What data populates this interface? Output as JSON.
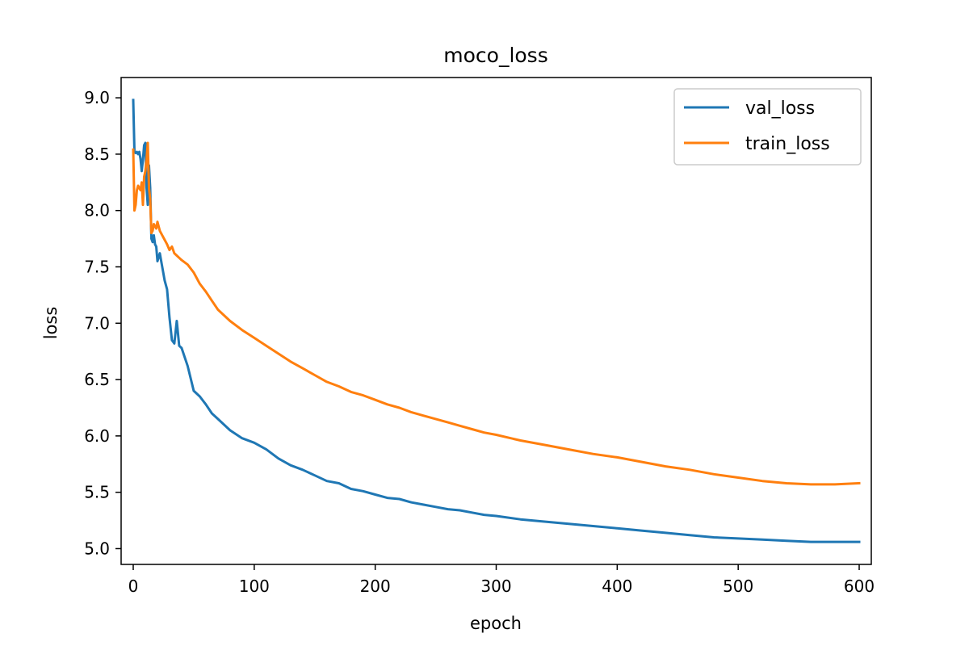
{
  "chart_data": {
    "type": "line",
    "title": "moco_loss",
    "xlabel": "epoch",
    "ylabel": "loss",
    "xlim": [
      -10,
      610
    ],
    "ylim": [
      4.86,
      9.18
    ],
    "xticks": [
      0,
      100,
      200,
      300,
      400,
      500,
      600
    ],
    "xtick_labels": [
      "0",
      "100",
      "200",
      "300",
      "400",
      "500",
      "600"
    ],
    "yticks": [
      5.0,
      5.5,
      6.0,
      6.5,
      7.0,
      7.5,
      8.0,
      8.5,
      9.0
    ],
    "ytick_labels": [
      "5.0",
      "5.5",
      "6.0",
      "6.5",
      "7.0",
      "7.5",
      "8.0",
      "8.5",
      "9.0"
    ],
    "grid": false,
    "legend_position": "top-right",
    "series": [
      {
        "name": "val_loss",
        "color": "#1f77b4",
        "x": [
          0,
          1,
          2,
          3,
          4,
          5,
          6,
          7,
          8,
          9,
          10,
          11,
          12,
          13,
          14,
          15,
          16,
          17,
          18,
          19,
          20,
          22,
          24,
          26,
          28,
          30,
          32,
          34,
          36,
          38,
          40,
          45,
          50,
          55,
          60,
          65,
          70,
          75,
          80,
          90,
          100,
          110,
          120,
          130,
          140,
          150,
          160,
          170,
          180,
          190,
          200,
          210,
          220,
          230,
          240,
          250,
          260,
          270,
          280,
          290,
          300,
          320,
          340,
          360,
          380,
          400,
          420,
          440,
          460,
          480,
          500,
          520,
          540,
          560,
          580,
          600
        ],
        "y": [
          8.98,
          8.52,
          8.51,
          8.52,
          8.5,
          8.52,
          8.46,
          8.35,
          8.45,
          8.58,
          8.6,
          8.2,
          8.05,
          8.4,
          8.2,
          7.75,
          7.72,
          7.78,
          7.7,
          7.68,
          7.55,
          7.62,
          7.5,
          7.38,
          7.3,
          7.05,
          6.85,
          6.82,
          7.02,
          6.8,
          6.78,
          6.62,
          6.4,
          6.35,
          6.28,
          6.2,
          6.15,
          6.1,
          6.05,
          5.98,
          5.94,
          5.88,
          5.8,
          5.74,
          5.7,
          5.65,
          5.6,
          5.58,
          5.53,
          5.51,
          5.48,
          5.45,
          5.44,
          5.41,
          5.39,
          5.37,
          5.35,
          5.34,
          5.32,
          5.3,
          5.29,
          5.26,
          5.24,
          5.22,
          5.2,
          5.18,
          5.16,
          5.14,
          5.12,
          5.1,
          5.09,
          5.08,
          5.07,
          5.06,
          5.06,
          5.06
        ]
      },
      {
        "name": "train_loss",
        "color": "#ff7f0e",
        "x": [
          0,
          1,
          2,
          3,
          4,
          5,
          6,
          7,
          8,
          9,
          10,
          11,
          12,
          13,
          14,
          15,
          16,
          17,
          18,
          19,
          20,
          22,
          24,
          26,
          28,
          30,
          32,
          34,
          36,
          38,
          40,
          45,
          50,
          55,
          60,
          65,
          70,
          75,
          80,
          90,
          100,
          110,
          120,
          130,
          140,
          150,
          160,
          170,
          180,
          190,
          200,
          210,
          220,
          230,
          240,
          250,
          260,
          270,
          280,
          290,
          300,
          320,
          340,
          360,
          380,
          400,
          420,
          440,
          460,
          480,
          500,
          520,
          540,
          560,
          580,
          600
        ],
        "y": [
          8.54,
          8.0,
          8.05,
          8.18,
          8.22,
          8.2,
          8.18,
          8.25,
          8.05,
          8.3,
          8.35,
          8.45,
          8.6,
          8.2,
          8.1,
          7.8,
          7.82,
          7.88,
          7.86,
          7.84,
          7.9,
          7.82,
          7.78,
          7.74,
          7.7,
          7.65,
          7.68,
          7.62,
          7.6,
          7.58,
          7.56,
          7.52,
          7.45,
          7.35,
          7.28,
          7.2,
          7.12,
          7.07,
          7.02,
          6.94,
          6.87,
          6.8,
          6.73,
          6.66,
          6.6,
          6.54,
          6.48,
          6.44,
          6.39,
          6.36,
          6.32,
          6.28,
          6.25,
          6.21,
          6.18,
          6.15,
          6.12,
          6.09,
          6.06,
          6.03,
          6.01,
          5.96,
          5.92,
          5.88,
          5.84,
          5.81,
          5.77,
          5.73,
          5.7,
          5.66,
          5.63,
          5.6,
          5.58,
          5.57,
          5.57,
          5.58
        ]
      }
    ]
  }
}
